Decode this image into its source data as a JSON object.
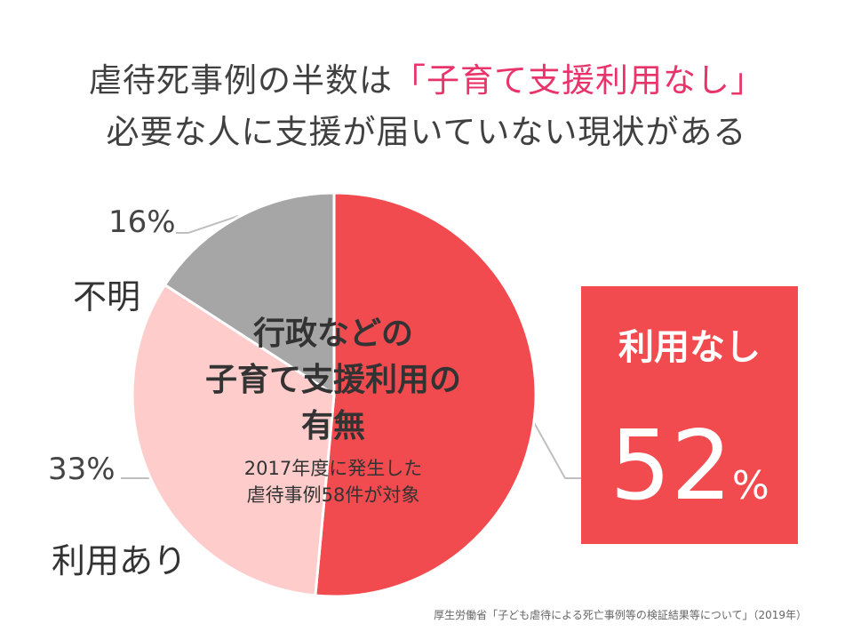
{
  "title": {
    "line1_prefix": "虐待死事例の半数は",
    "line1_highlight": "「子育て支援利用なし」",
    "line2": "必要な人に支援が届いていない現状がある"
  },
  "chart_data": {
    "type": "pie",
    "title_lines": [
      "行政などの",
      "子育て支援利用の",
      "有無"
    ],
    "note_lines": [
      "2017年度に発生した",
      "虐待事例58件が対象"
    ],
    "slices": [
      {
        "label": "利用なし",
        "value": 52,
        "display": "52",
        "color": "#f24b4f"
      },
      {
        "label": "利用あり",
        "value": 33,
        "display": "33%",
        "color": "#ffcccc"
      },
      {
        "label": "不明",
        "value": 16,
        "display": "16%",
        "color": "#a6a6a6"
      }
    ]
  },
  "callout": {
    "label": "利用なし",
    "value": "52",
    "unit": "%"
  },
  "source": "厚生労働省「子ども虐待による死亡事例等の検証結果等について」（2019年）",
  "colors": {
    "highlight": "#e8346a",
    "no_use": "#f24b4f",
    "use": "#ffcccc",
    "unknown": "#a6a6a6",
    "leader": "#bfbfbf"
  }
}
